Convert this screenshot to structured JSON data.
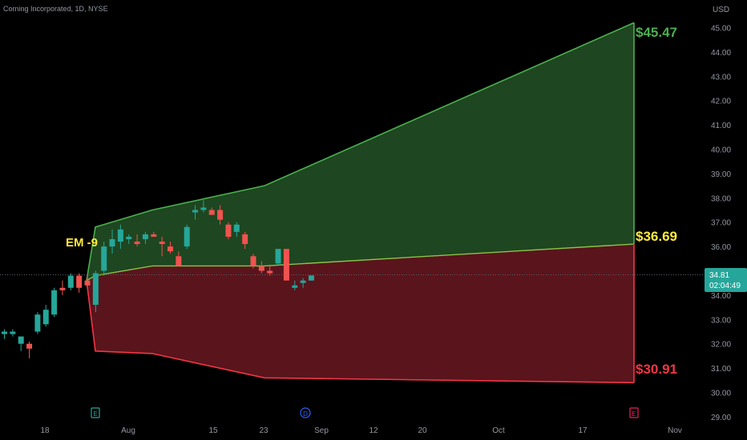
{
  "header": {
    "title": "Corning Incorporated, 1D, NYSE"
  },
  "axis": {
    "currency": "USD"
  },
  "annotations": {
    "em_label": "EM -9",
    "upper_label": "$45.47",
    "mid_label": "$36.69",
    "lower_label": "$30.91"
  },
  "price_tag": {
    "price": "34.81",
    "countdown": "02:04:49"
  },
  "event_markers": [
    "E",
    "D",
    "E"
  ],
  "colors": {
    "up": "#26a69a",
    "down": "#ef5350",
    "upper_zone_fill": "#1e4620",
    "lower_zone_fill": "#5a141c",
    "upper_zone_line": "#4caf50",
    "lower_zone_line": "#f23645",
    "label_green": "#4caf50",
    "label_yellow": "#ffeb3b",
    "label_red": "#f23645"
  },
  "chart_data": {
    "type": "candlestick",
    "title": "Corning Incorporated, 1D, NYSE",
    "y_axis": {
      "label": "USD",
      "range": [
        28.7,
        46.0
      ],
      "ticks": [
        "29.00",
        "30.00",
        "31.00",
        "32.00",
        "33.00",
        "34.00",
        "35.00",
        "36.00",
        "37.00",
        "38.00",
        "39.00",
        "40.00",
        "41.00",
        "42.00",
        "43.00",
        "44.00",
        "45.00"
      ]
    },
    "x_axis": {
      "ticks": [
        "18",
        "Aug",
        "15",
        "23",
        "Sep",
        "12",
        "20",
        "Oct",
        "17",
        "Nov"
      ]
    },
    "candles": [
      {
        "o": 32.4,
        "h": 32.6,
        "l": 32.2,
        "c": 32.5
      },
      {
        "o": 32.4,
        "h": 32.6,
        "l": 32.3,
        "c": 32.5
      },
      {
        "o": 32.0,
        "h": 32.3,
        "l": 31.7,
        "c": 32.3
      },
      {
        "o": 32.0,
        "h": 32.1,
        "l": 31.4,
        "c": 31.8
      },
      {
        "o": 32.5,
        "h": 33.3,
        "l": 32.4,
        "c": 33.2
      },
      {
        "o": 32.8,
        "h": 33.6,
        "l": 32.7,
        "c": 33.4
      },
      {
        "o": 33.2,
        "h": 34.3,
        "l": 33.1,
        "c": 34.2
      },
      {
        "o": 34.3,
        "h": 34.6,
        "l": 34.0,
        "c": 34.2
      },
      {
        "o": 34.3,
        "h": 34.9,
        "l": 34.2,
        "c": 34.8
      },
      {
        "o": 34.8,
        "h": 34.9,
        "l": 34.1,
        "c": 34.3
      },
      {
        "o": 34.6,
        "h": 34.8,
        "l": 34.3,
        "c": 34.4
      },
      {
        "o": 33.6,
        "h": 35.0,
        "l": 33.3,
        "c": 34.9
      },
      {
        "o": 35.0,
        "h": 36.2,
        "l": 34.8,
        "c": 36.0
      },
      {
        "o": 36.0,
        "h": 36.7,
        "l": 35.7,
        "c": 36.3
      },
      {
        "o": 36.2,
        "h": 36.9,
        "l": 35.9,
        "c": 36.7
      },
      {
        "o": 36.3,
        "h": 36.5,
        "l": 36.1,
        "c": 36.4
      },
      {
        "o": 36.2,
        "h": 36.5,
        "l": 36.0,
        "c": 36.1
      },
      {
        "o": 36.3,
        "h": 36.6,
        "l": 36.1,
        "c": 36.5
      },
      {
        "o": 36.5,
        "h": 36.6,
        "l": 36.4,
        "c": 36.4
      },
      {
        "o": 36.2,
        "h": 36.4,
        "l": 35.6,
        "c": 36.1
      },
      {
        "o": 36.0,
        "h": 36.2,
        "l": 35.7,
        "c": 35.8
      },
      {
        "o": 35.6,
        "h": 35.8,
        "l": 35.2,
        "c": 35.2
      },
      {
        "o": 36.0,
        "h": 36.9,
        "l": 35.9,
        "c": 36.8
      },
      {
        "o": 37.4,
        "h": 37.7,
        "l": 37.1,
        "c": 37.5
      },
      {
        "o": 37.5,
        "h": 37.9,
        "l": 37.4,
        "c": 37.6
      },
      {
        "o": 37.5,
        "h": 37.6,
        "l": 37.3,
        "c": 37.3
      },
      {
        "o": 37.5,
        "h": 37.7,
        "l": 36.9,
        "c": 37.1
      },
      {
        "o": 36.9,
        "h": 37.0,
        "l": 36.3,
        "c": 36.4
      },
      {
        "o": 36.6,
        "h": 37.0,
        "l": 36.4,
        "c": 36.9
      },
      {
        "o": 36.5,
        "h": 36.6,
        "l": 35.9,
        "c": 36.1
      },
      {
        "o": 35.6,
        "h": 35.7,
        "l": 35.1,
        "c": 35.2
      },
      {
        "o": 35.2,
        "h": 35.4,
        "l": 34.9,
        "c": 35.0
      },
      {
        "o": 35.0,
        "h": 35.2,
        "l": 34.8,
        "c": 34.9
      },
      {
        "o": 35.3,
        "h": 35.9,
        "l": 35.2,
        "c": 35.9
      },
      {
        "o": 35.9,
        "h": 35.9,
        "l": 34.6,
        "c": 34.6
      },
      {
        "o": 34.3,
        "h": 34.6,
        "l": 34.2,
        "c": 34.4
      },
      {
        "o": 34.5,
        "h": 34.7,
        "l": 34.3,
        "c": 34.6
      },
      {
        "o": 34.6,
        "h": 34.8,
        "l": 34.6,
        "c": 34.81
      }
    ],
    "expected_move": {
      "label": "EM -9",
      "upper": 45.47,
      "middle": 36.69,
      "lower": 30.91,
      "upper_path": [
        34.6,
        36.8,
        37.5,
        38.5,
        45.2
      ],
      "middle_path": [
        34.6,
        34.8,
        35.2,
        35.2,
        36.1
      ],
      "lower_path": [
        34.6,
        31.7,
        31.6,
        30.6,
        30.4
      ]
    },
    "last_price": 34.81
  }
}
